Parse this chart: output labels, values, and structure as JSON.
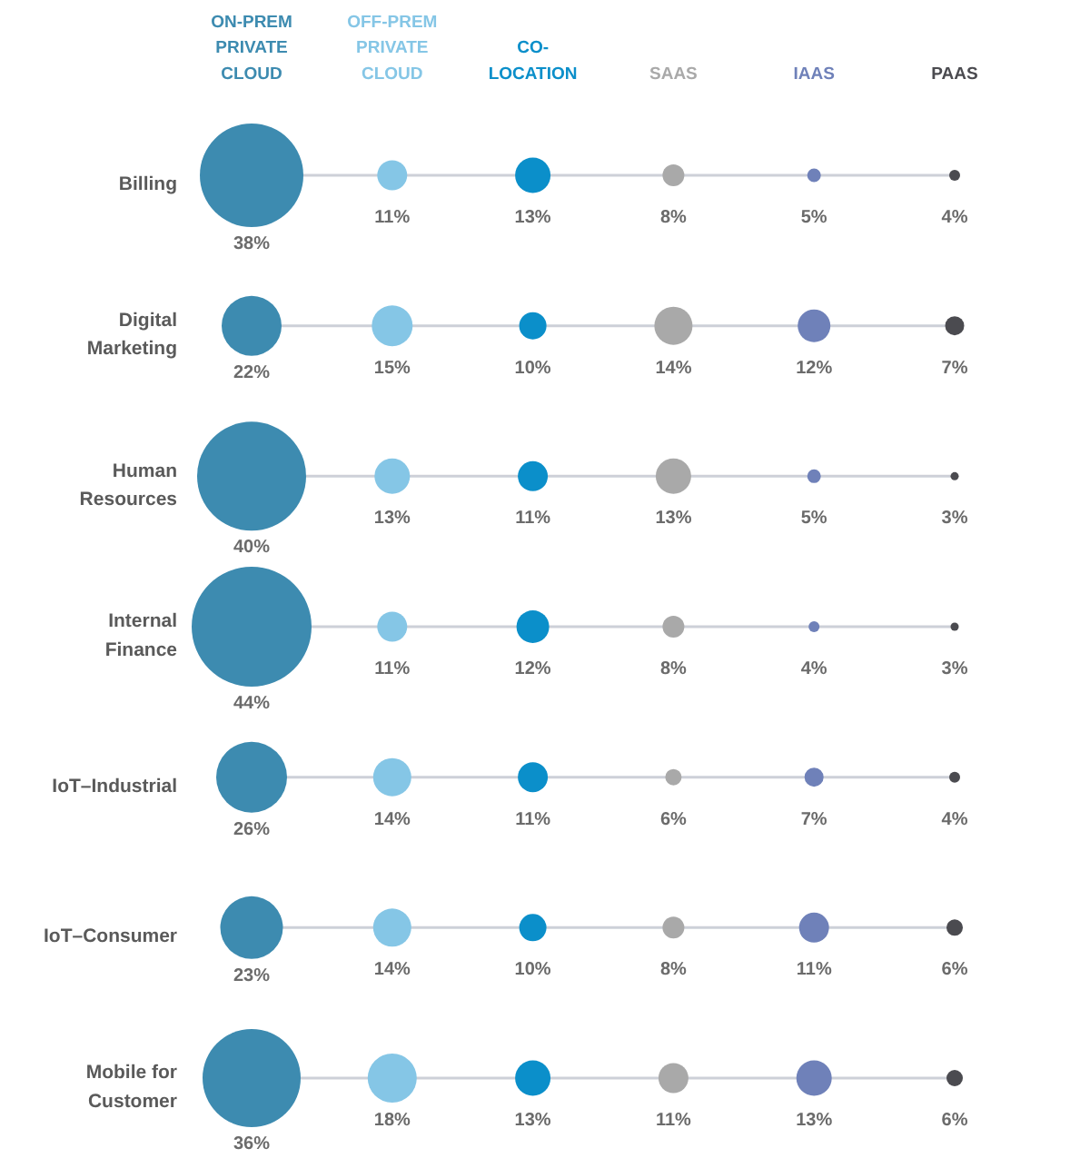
{
  "chart_data": {
    "type": "other",
    "categories": [
      "Billing",
      "Digital Marketing",
      "Human Resources",
      "Internal Finance",
      "IoT–Industrial",
      "IoT–Consumer",
      "Mobile for Customer"
    ],
    "series": [
      {
        "name": "ON-PREM PRIVATE CLOUD",
        "color": "#3d8bb0",
        "values": [
          38,
          22,
          40,
          44,
          26,
          23,
          36
        ],
        "value_labels": [
          "38%",
          "22%",
          "40%",
          "44%",
          "26%",
          "23%",
          "36%"
        ]
      },
      {
        "name": "OFF-PREM PRIVATE CLOUD",
        "color": "#85c6e6",
        "values": [
          11,
          15,
          13,
          11,
          14,
          14,
          18
        ],
        "value_labels": [
          "11%",
          "15%",
          "13%",
          "11%",
          "14%",
          "14%",
          "18%"
        ]
      },
      {
        "name": "CO-LOCATION",
        "color": "#0b8fca",
        "values": [
          13,
          10,
          11,
          12,
          11,
          10,
          13
        ],
        "value_labels": [
          "13%",
          "10%",
          "11%",
          "12%",
          "11%",
          "10%",
          "13%"
        ]
      },
      {
        "name": "SAAS",
        "color": "#a9a9a9",
        "values": [
          8,
          14,
          13,
          8,
          6,
          8,
          11
        ],
        "value_labels": [
          "8%",
          "14%",
          "13%",
          "8%",
          "6%",
          "8%",
          "11%"
        ]
      },
      {
        "name": "IAAS",
        "color": "#6f81b9",
        "values": [
          5,
          12,
          5,
          4,
          7,
          11,
          13
        ],
        "value_labels": [
          "5%",
          "12%",
          "5%",
          "4%",
          "7%",
          "11%",
          "13%"
        ]
      },
      {
        "name": "PAAS",
        "color": "#4b4b50",
        "values": [
          4,
          7,
          3,
          3,
          4,
          6,
          6
        ],
        "value_labels": [
          "4%",
          "7%",
          "3%",
          "3%",
          "4%",
          "6%",
          "6%"
        ]
      }
    ]
  }
}
